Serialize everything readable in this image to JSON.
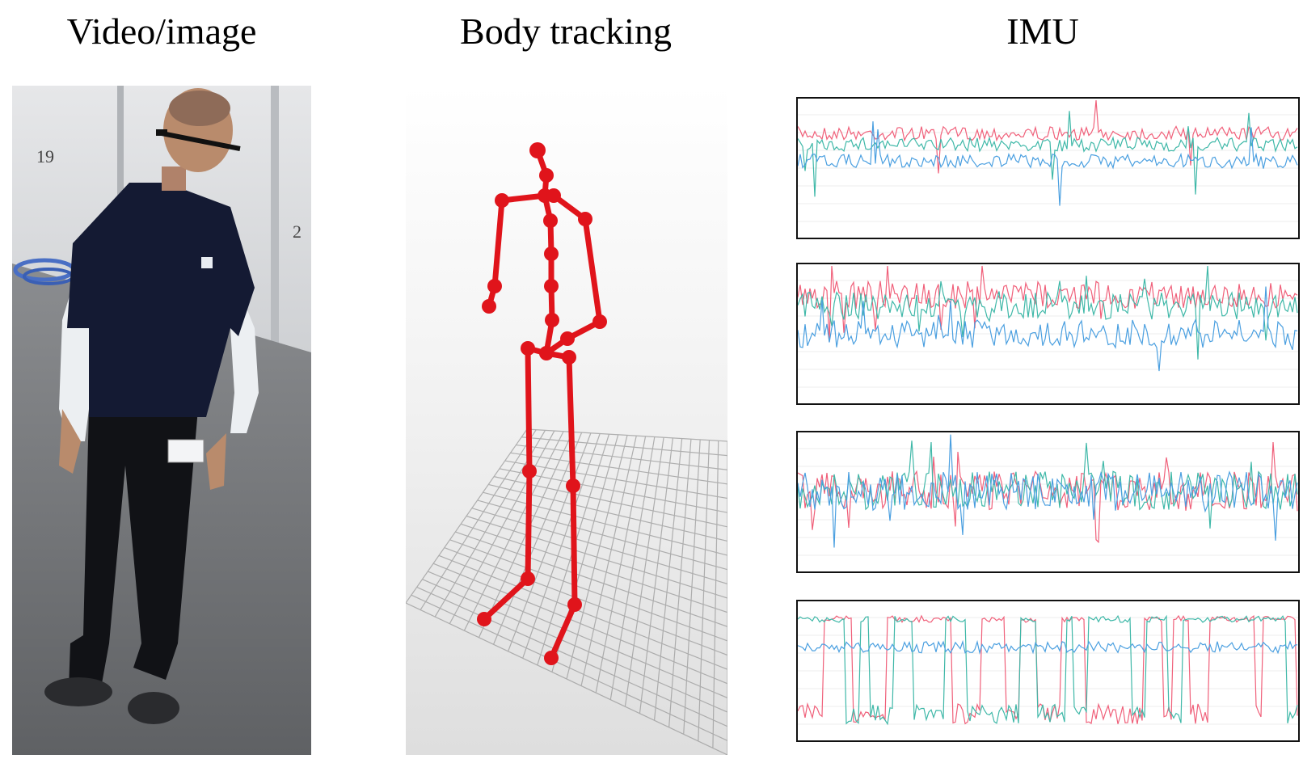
{
  "headings": {
    "video": "Video/image",
    "body_tracking": "Body tracking",
    "imu": "IMU"
  },
  "video_panel": {
    "wall_numbers": [
      "19",
      "2"
    ]
  },
  "colors": {
    "skeleton": "#e0141b",
    "imu_red": "#f0607a",
    "imu_green": "#3fb8a8",
    "imu_blue": "#4a9fe0"
  },
  "imu_plots": [
    {
      "id": "plot-1",
      "series": [
        "red",
        "green",
        "blue"
      ]
    },
    {
      "id": "plot-2",
      "series": [
        "red",
        "green",
        "blue"
      ]
    },
    {
      "id": "plot-3",
      "series": [
        "red",
        "green",
        "blue"
      ]
    },
    {
      "id": "plot-4",
      "series": [
        "red",
        "green",
        "blue"
      ]
    }
  ]
}
